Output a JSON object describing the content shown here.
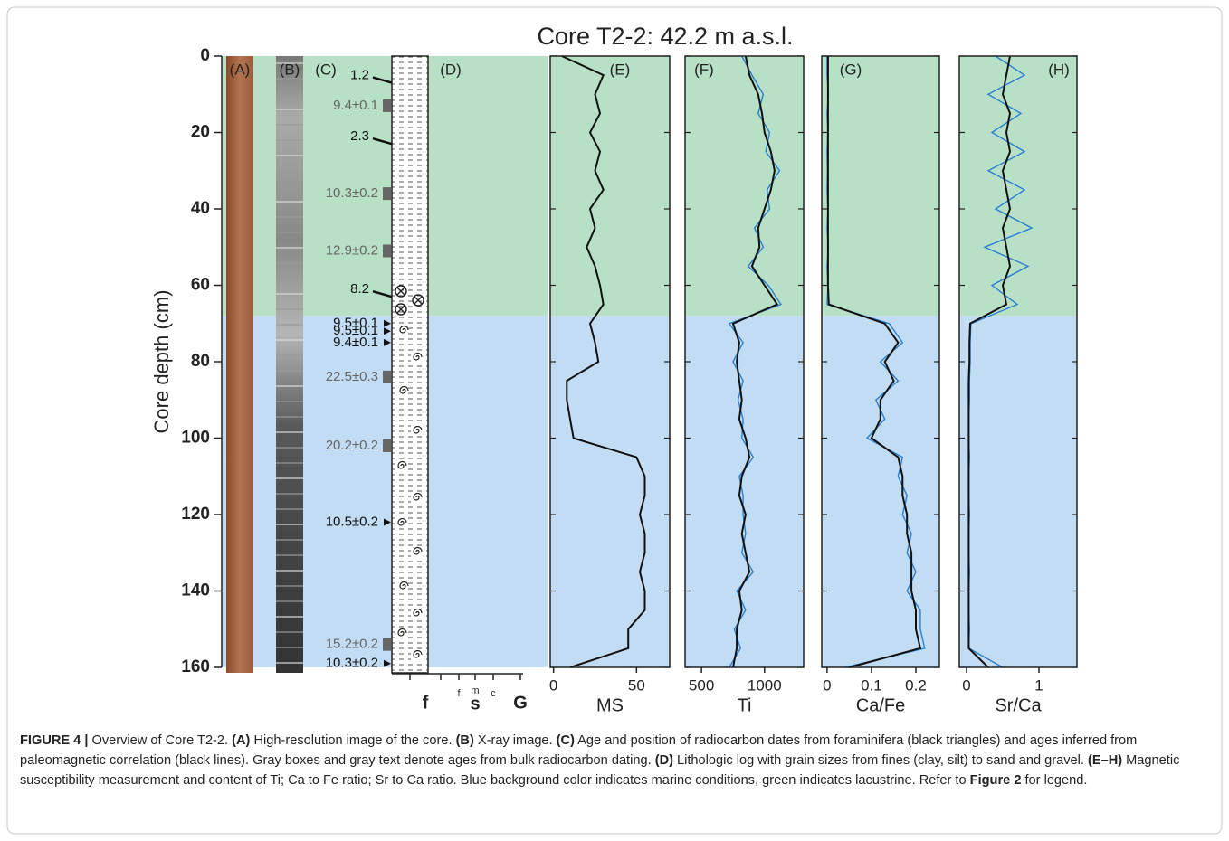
{
  "title": "Core T2-2: 42.2 m a.s.l.",
  "depth_axis": {
    "label": "Core depth (cm)",
    "ylim": [
      0,
      160
    ],
    "yticks": [
      0,
      20,
      40,
      60,
      80,
      100,
      120,
      140,
      160
    ]
  },
  "zones": [
    {
      "from": 0,
      "to": 68,
      "color": "#b8e0c6"
    },
    {
      "from": 68,
      "to": 160,
      "color": "#c2dcf3"
    }
  ],
  "panel_labels": [
    "(A)",
    "(B)",
    "(C)",
    "(D)",
    "(E)",
    "(F)",
    "(G)",
    "(H)"
  ],
  "ages": [
    {
      "label": "1.2",
      "depth": 7,
      "color": "#111111",
      "marker": "line"
    },
    {
      "label": "9.4±0.1",
      "depth": 13,
      "color": "#666666",
      "marker": "box"
    },
    {
      "label": "2.3",
      "depth": 23,
      "color": "#111111",
      "marker": "line"
    },
    {
      "label": "10.3±0.2",
      "depth": 36,
      "color": "#666666",
      "marker": "box"
    },
    {
      "label": "12.9±0.2",
      "depth": 51,
      "color": "#666666",
      "marker": "box"
    },
    {
      "label": "8.2",
      "depth": 63,
      "color": "#111111",
      "marker": "line"
    },
    {
      "label": "9.5±0.1",
      "depth": 70,
      "color": "#111111",
      "marker": "triangle"
    },
    {
      "label": "9.5±0.1",
      "depth": 72,
      "color": "#111111",
      "marker": "triangle"
    },
    {
      "label": "9.4±0.1",
      "depth": 75,
      "color": "#111111",
      "marker": "triangle"
    },
    {
      "label": "22.5±0.3",
      "depth": 84,
      "color": "#666666",
      "marker": "box"
    },
    {
      "label": "20.2±0.2",
      "depth": 102,
      "color": "#666666",
      "marker": "box"
    },
    {
      "label": "10.5±0.2",
      "depth": 122,
      "color": "#111111",
      "marker": "triangle"
    },
    {
      "label": "15.2±0.2",
      "depth": 154,
      "color": "#666666",
      "marker": "box"
    },
    {
      "label": "10.3±0.2",
      "depth": 159,
      "color": "#111111",
      "marker": "triangle"
    }
  ],
  "lithology_axis": [
    "f",
    "f",
    "m",
    "c",
    "s",
    "G"
  ],
  "chart_data": [
    {
      "type": "line",
      "xlabel": "MS",
      "xlim": [
        -2,
        70
      ],
      "xticks": [
        0,
        50
      ],
      "y": [
        0,
        5,
        10,
        15,
        20,
        25,
        30,
        35,
        40,
        45,
        50,
        55,
        60,
        65,
        70,
        75,
        80,
        85,
        90,
        95,
        100,
        105,
        110,
        115,
        120,
        125,
        130,
        135,
        140,
        145,
        150,
        155,
        160
      ],
      "series": [
        {
          "color": "#111111",
          "values": [
            5,
            30,
            25,
            28,
            22,
            28,
            25,
            30,
            22,
            25,
            20,
            25,
            28,
            30,
            22,
            25,
            27,
            8,
            8,
            10,
            12,
            50,
            55,
            55,
            52,
            55,
            55,
            52,
            55,
            55,
            45,
            45,
            10
          ]
        }
      ]
    },
    {
      "type": "line",
      "xlabel": "Ti",
      "xlim": [
        370,
        1310
      ],
      "xticks": [
        500,
        1000
      ],
      "y": [
        0,
        5,
        10,
        15,
        20,
        25,
        30,
        35,
        40,
        45,
        50,
        55,
        60,
        65,
        70,
        75,
        80,
        85,
        90,
        95,
        100,
        105,
        110,
        115,
        120,
        125,
        130,
        135,
        140,
        145,
        150,
        155,
        160
      ],
      "series": [
        {
          "color": "#2a7fd0",
          "values": [
            820,
            900,
            990,
            950,
            1040,
            1010,
            1120,
            1020,
            1040,
            920,
            990,
            870,
            1030,
            1130,
            720,
            830,
            750,
            830,
            790,
            830,
            820,
            910,
            800,
            830,
            830,
            850,
            820,
            910,
            780,
            850,
            760,
            810,
            720
          ]
        },
        {
          "color": "#111111",
          "values": [
            850,
            880,
            950,
            980,
            1000,
            1050,
            1080,
            1050,
            1000,
            950,
            960,
            900,
            1000,
            1100,
            750,
            800,
            780,
            800,
            820,
            800,
            850,
            880,
            820,
            800,
            850,
            820,
            850,
            880,
            800,
            820,
            780,
            780,
            750
          ]
        }
      ]
    },
    {
      "type": "line",
      "xlabel": "Ca/Fe",
      "xlim": [
        -0.012,
        0.253
      ],
      "xticks": [
        0,
        0.1,
        0.2
      ],
      "y": [
        0,
        5,
        10,
        15,
        20,
        25,
        30,
        35,
        40,
        45,
        50,
        55,
        60,
        65,
        70,
        75,
        80,
        85,
        90,
        95,
        100,
        105,
        110,
        115,
        120,
        125,
        130,
        135,
        140,
        145,
        150,
        155,
        160
      ],
      "series": [
        {
          "color": "#2a7fd0",
          "values": [
            0,
            0,
            0.003,
            0,
            0.002,
            0,
            0.001,
            0,
            0.002,
            0,
            0.003,
            0,
            0.002,
            0,
            0.14,
            0.17,
            0.12,
            0.16,
            0.11,
            0.13,
            0.09,
            0.17,
            0.16,
            0.18,
            0.17,
            0.19,
            0.18,
            0.2,
            0.18,
            0.21,
            0.21,
            0.22,
            0.04
          ]
        },
        {
          "color": "#111111",
          "values": [
            0.002,
            0.002,
            0.002,
            0.002,
            0.002,
            0.002,
            0.002,
            0.002,
            0.002,
            0.002,
            0.002,
            0.002,
            0.002,
            0.004,
            0.13,
            0.16,
            0.13,
            0.15,
            0.12,
            0.12,
            0.1,
            0.16,
            0.17,
            0.17,
            0.18,
            0.18,
            0.19,
            0.19,
            0.19,
            0.2,
            0.2,
            0.21,
            0.05
          ]
        }
      ]
    },
    {
      "type": "line",
      "xlabel": "Sr/Ca",
      "xlim": [
        -0.1,
        1.525
      ],
      "xticks": [
        0,
        1
      ],
      "y": [
        0,
        5,
        10,
        15,
        20,
        25,
        30,
        35,
        40,
        45,
        50,
        55,
        60,
        65,
        70,
        75,
        80,
        85,
        90,
        95,
        100,
        105,
        110,
        115,
        120,
        125,
        130,
        135,
        140,
        145,
        150,
        155,
        160
      ],
      "series": [
        {
          "color": "#2a7fd0",
          "values": [
            0.4,
            0.8,
            0.3,
            0.75,
            0.35,
            0.8,
            0.3,
            0.8,
            0.4,
            0.9,
            0.25,
            0.85,
            0.35,
            0.7,
            0.06,
            0.05,
            0.05,
            0.04,
            0.04,
            0.03,
            0.03,
            0.04,
            0.03,
            0.03,
            0.04,
            0.03,
            0.03,
            0.04,
            0.03,
            0.03,
            0.04,
            0.03,
            0.5
          ]
        },
        {
          "color": "#111111",
          "values": [
            0.6,
            0.55,
            0.5,
            0.6,
            0.55,
            0.6,
            0.5,
            0.55,
            0.6,
            0.5,
            0.55,
            0.6,
            0.5,
            0.55,
            0.05,
            0.04,
            0.04,
            0.03,
            0.03,
            0.03,
            0.03,
            0.03,
            0.03,
            0.03,
            0.03,
            0.03,
            0.03,
            0.03,
            0.03,
            0.03,
            0.03,
            0.03,
            0.3
          ]
        }
      ]
    }
  ],
  "caption": {
    "runs": [
      {
        "text": "FIGURE 4 |",
        "bold": true
      },
      {
        "text": " Overview of Core T2-2. ",
        "bold": false
      },
      {
        "text": "(A)",
        "bold": true
      },
      {
        "text": " High-resolution image of the core. ",
        "bold": false
      },
      {
        "text": "(B)",
        "bold": true
      },
      {
        "text": " X-ray image. ",
        "bold": false
      },
      {
        "text": "(C)",
        "bold": true
      },
      {
        "text": " Age and position of radiocarbon dates from foraminifera (black triangles) and ages inferred from paleomagnetic correlation (black lines). Gray boxes and gray text denote ages from bulk radiocarbon dating. ",
        "bold": false
      },
      {
        "text": "(D)",
        "bold": true
      },
      {
        "text": " Lithologic log with grain sizes from fines (clay, silt) to sand and gravel. ",
        "bold": false
      },
      {
        "text": "(E–H)",
        "bold": true
      },
      {
        "text": " Magnetic susceptibility measurement and content of Ti; Ca to Fe ratio; Sr to Ca ratio. Blue background color indicates marine conditions, green indicates lacustrine. Refer to ",
        "bold": false
      },
      {
        "text": "Figure 2",
        "bold": true
      },
      {
        "text": " for legend.",
        "bold": false
      }
    ]
  }
}
